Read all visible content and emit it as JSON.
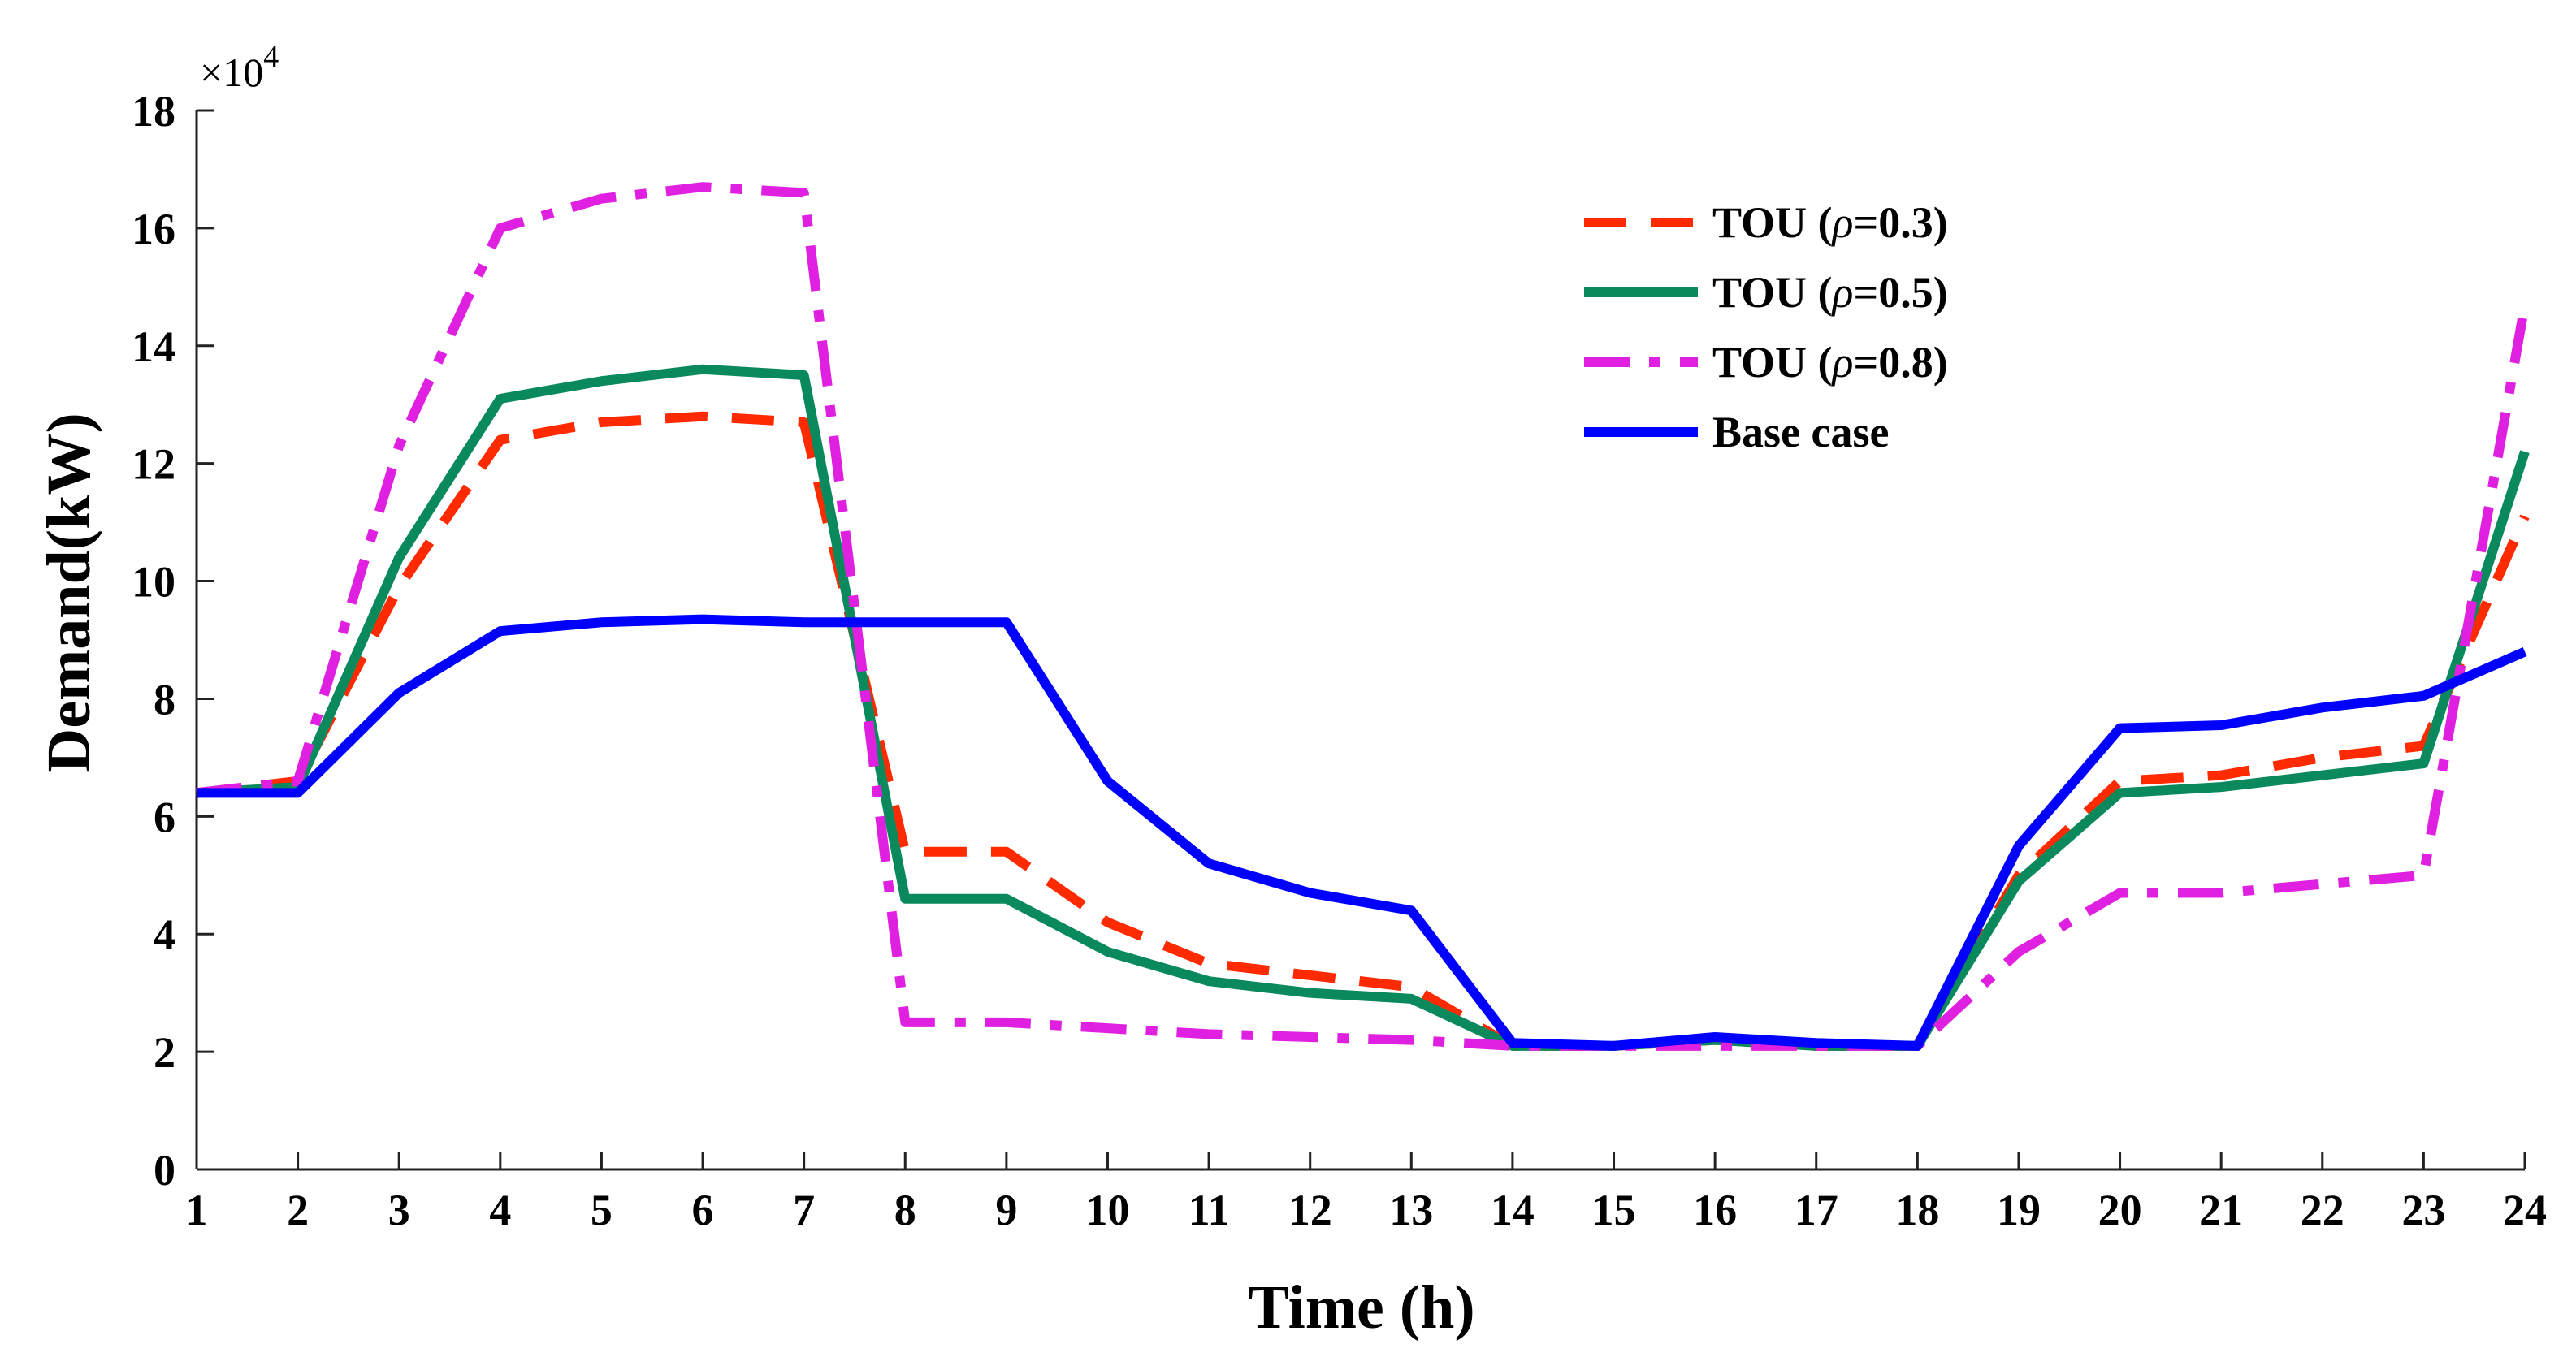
{
  "chart_data": {
    "type": "line",
    "title": "",
    "xlabel": "Time (h)",
    "ylabel": "Demand(kW)",
    "y_multiplier_label": "×10",
    "y_multiplier_exponent": "4",
    "xlim": [
      1,
      24
    ],
    "ylim": [
      0,
      18
    ],
    "grid": false,
    "legend_position": "top-right",
    "categories": [
      1,
      2,
      3,
      4,
      5,
      6,
      7,
      8,
      9,
      10,
      11,
      12,
      13,
      14,
      15,
      16,
      17,
      18,
      19,
      20,
      21,
      22,
      23,
      24
    ],
    "x_ticks": [
      "1",
      "2",
      "3",
      "4",
      "5",
      "6",
      "7",
      "8",
      "9",
      "10",
      "11",
      "12",
      "13",
      "14",
      "15",
      "16",
      "17",
      "18",
      "19",
      "20",
      "21",
      "22",
      "23",
      "24"
    ],
    "y_ticks": [
      "0",
      "2",
      "4",
      "6",
      "8",
      "10",
      "12",
      "14",
      "16",
      "18"
    ],
    "series": [
      {
        "name": "TOU (ρ=0.3)",
        "label_prefix": "TOU (",
        "label_symbol": "ρ",
        "label_suffix": "=0.3)",
        "color": "#ff2a00",
        "style": "dashed",
        "values": [
          6.4,
          6.6,
          9.9,
          12.4,
          12.7,
          12.8,
          12.7,
          5.4,
          5.4,
          4.2,
          3.5,
          3.3,
          3.1,
          2.1,
          2.1,
          2.2,
          2.1,
          2.1,
          5.0,
          6.6,
          6.7,
          7.0,
          7.2,
          11.1
        ]
      },
      {
        "name": "TOU (ρ=0.5)",
        "label_prefix": "TOU (",
        "label_symbol": "ρ",
        "label_suffix": "=0.5)",
        "color": "#0a8a5c",
        "style": "solid",
        "values": [
          6.4,
          6.5,
          10.4,
          13.1,
          13.4,
          13.6,
          13.5,
          4.6,
          4.6,
          3.7,
          3.2,
          3.0,
          2.9,
          2.1,
          2.1,
          2.2,
          2.1,
          2.1,
          4.9,
          6.4,
          6.5,
          6.7,
          6.9,
          12.2
        ]
      },
      {
        "name": "TOU (ρ=0.8)",
        "label_prefix": "TOU (",
        "label_symbol": "ρ",
        "label_suffix": "=0.8)",
        "color": "#e020e0",
        "style": "dashdot",
        "values": [
          6.4,
          6.6,
          12.3,
          16.0,
          16.5,
          16.7,
          16.6,
          2.5,
          2.5,
          2.4,
          2.3,
          2.25,
          2.2,
          2.1,
          2.1,
          2.1,
          2.1,
          2.1,
          3.7,
          4.7,
          4.7,
          4.85,
          5.0,
          14.7
        ]
      },
      {
        "name": "Base case",
        "label_prefix": "Base case",
        "label_symbol": "",
        "label_suffix": "",
        "color": "#0000ff",
        "style": "solid",
        "values": [
          6.4,
          6.4,
          8.1,
          9.15,
          9.3,
          9.35,
          9.3,
          9.3,
          9.3,
          6.6,
          5.2,
          4.7,
          4.4,
          2.15,
          2.1,
          2.25,
          2.15,
          2.1,
          5.5,
          7.5,
          7.55,
          7.85,
          8.05,
          8.8
        ]
      }
    ]
  }
}
